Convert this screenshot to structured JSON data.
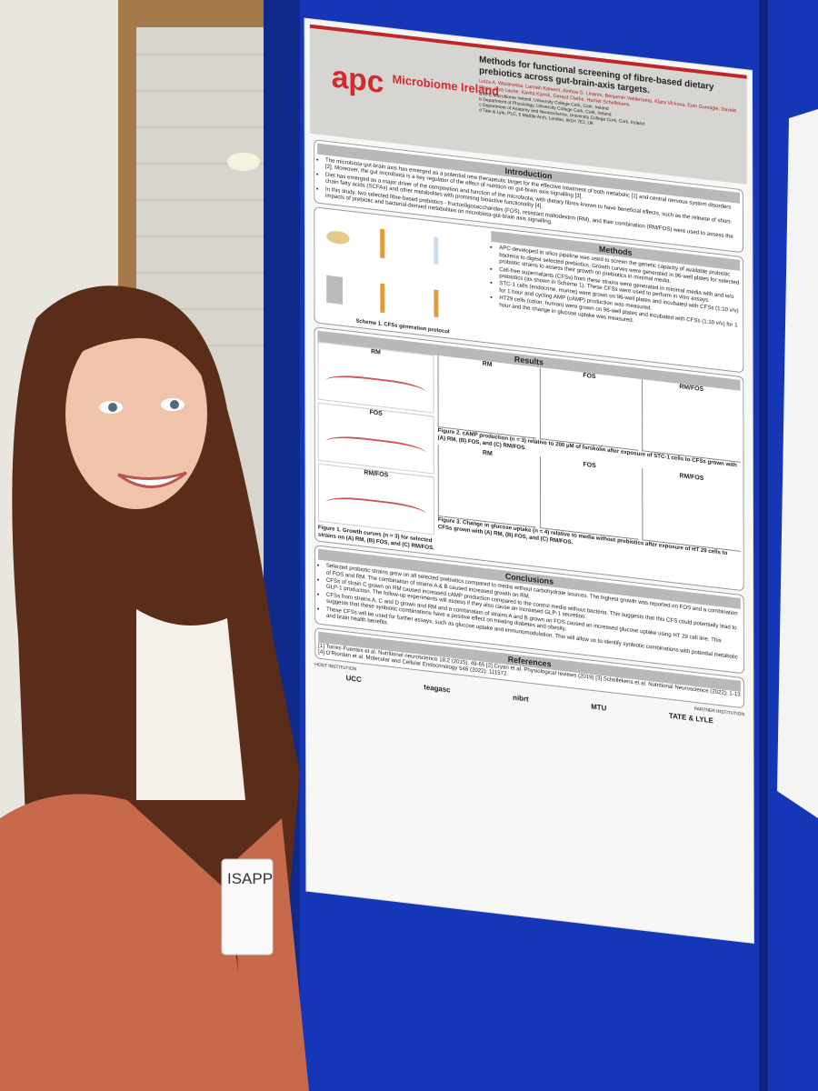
{
  "poster": {
    "logo": {
      "mark": "apc",
      "name": "Microbiome Ireland"
    },
    "title": "Methods for functional screening of fibre-based dietary prebiotics across gut-brain-axis targets.",
    "authors": "Luiza A. Wasiewska, Lamiah Kareem, Ainhoa G. Linares, Benjamin Valderrama, Klara Vlckova, Eoin Gunnigle, Davide Risso, Ieva Laurie, Kavita Karnik, Gerard Clarke, Harriet Schellekens",
    "affiliations": [
      "a APC Microbiome Ireland, University College Cork, Cork, Ireland",
      "b Department of Physiology, University College Cork, Cork, Ireland",
      "c Department of Anatomy and Neuroscience, University College Cork, Cork, Ireland",
      "d Tate & Lyle, PLC, 5 Marble Arch, London, W1H 7EJ, UK"
    ],
    "sections": {
      "introduction": {
        "heading": "Introduction",
        "bullets": [
          "The microbiota-gut-brain axis has emerged as a potential new therapeutic target for the effective treatment of both metabolic [1] and central nervous system disorders [2]. Moreover, the gut microbiota is a key regulator of the effect of nutrition on gut-brain axis signalling [3].",
          "Diet has emerged as a major driver of the composition and function of the microbiota, with dietary fibres known to have beneficial effects, such as the release of short-chain fatty acids (SCFAs) and other metabolites with promising bioactive functionality [4].",
          "In this study, two selected fibre-based prebiotics - fructooligosaccharides (FOS), resistant maltodextrin (RM), and their combination (RM/FOS) were used to assess the impacts of prebiotic and bacterial-derived metabolites on microbiota-gut-brain axis signalling."
        ]
      },
      "methods": {
        "heading": "Methods",
        "caption": "Scheme 1. CFSs generation protocol",
        "bullets": [
          "APC-developed in silico pipeline was used to screen the genetic capacity of available probiotic bacteria to digest selected prebiotics. Growth curves were generated in 96-well plates for selected probiotic strains to assess their growth on prebiotics in minimal media.",
          "Cell-free supernatants (CFSs) from these strains were generated in minimal media with and w/o prebiotics (as shown in Scheme 1). These CFSs were used to perform in vitro assays.",
          "STC-1 cells (endocrine, murine) were grown on 96-well plates and incubated with CFSs (1:10 v/v) for 1 hour and cycling AMP (cAMP) production was measured.",
          "HT29 cells (colon, human) were grown on 96-well plates and incubated with CFSs (1:10 v/v) for 1 hour and the change in glucose uptake was measured."
        ]
      },
      "results": {
        "heading": "Results",
        "panels": [
          "RM",
          "FOS",
          "RM/FOS"
        ],
        "figure1": "Figure 1. Growth curves (n = 3) for selected strains on (A) RM, (B) FOS, and (C) RM/FOS.",
        "figure2": "Figure 2. cAMP production (n = 3) relative to 200 µM of forskolin after exposure of STC-1 cells to CFSs grown with (A) RM, (B) FOS, and (C) RM/FOS.",
        "figure3": "Figure 3. Change in glucose uptake (n = 4) relative to media without prebiotics after exposure of HT 29 cells to CFSs grown with (A) RM, (B) FOS, and (C) RM/FOS."
      },
      "conclusions": {
        "heading": "Conclusions",
        "bullets": [
          "Selected probiotic strains grew on all selected prebiotics compared to media without carbohydrate sources. The highest growth was reported on FOS and a combination of FOS and RM. The combination of strains A & B caused increased growth on RM.",
          "CFSs of strain C grown on RM caused increased cAMP production compared to the control media without bacteria. This suggests that this CFS could potentially lead to GLP-1 production. The follow-up experiments will assess if they also cause an increased GLP-1 secretion.",
          "CFSs from strains A, C and D grown and RM and a combination of strains A and B grown on FOS caused an increased glucose uptake using HT 29 cell line. This suggests that these synbiotic combinations have a positive effect on treating diabetes and obesity.",
          "These CFSs will be used for further assays, such as glucose uptake and immunomodulation. This will allow us to identify synbiotic combinations with potential metabolic and brain health benefits."
        ]
      },
      "references": {
        "heading": "References",
        "items": [
          "[1] Torres-Fuentes et al. Nutritional neuroscience 18.2 (2015): 49-65 [2] Cryan et al. Physiological reviews (2019) [3] Schellekens et al. Nutritional Neuroscience (2022): 1-13",
          "[4] O'Riordan et al. Molecular and Cellular Endocrinology 546 (2022): 111572"
        ]
      }
    },
    "footer": {
      "host": "HOST INSTITUTION",
      "partner": "PARTNER INSTITUTION",
      "logos": [
        "UCC",
        "teagasc",
        "nibrt",
        "MTU",
        "TATE & LYLE"
      ]
    }
  },
  "badge": "ISAPP"
}
